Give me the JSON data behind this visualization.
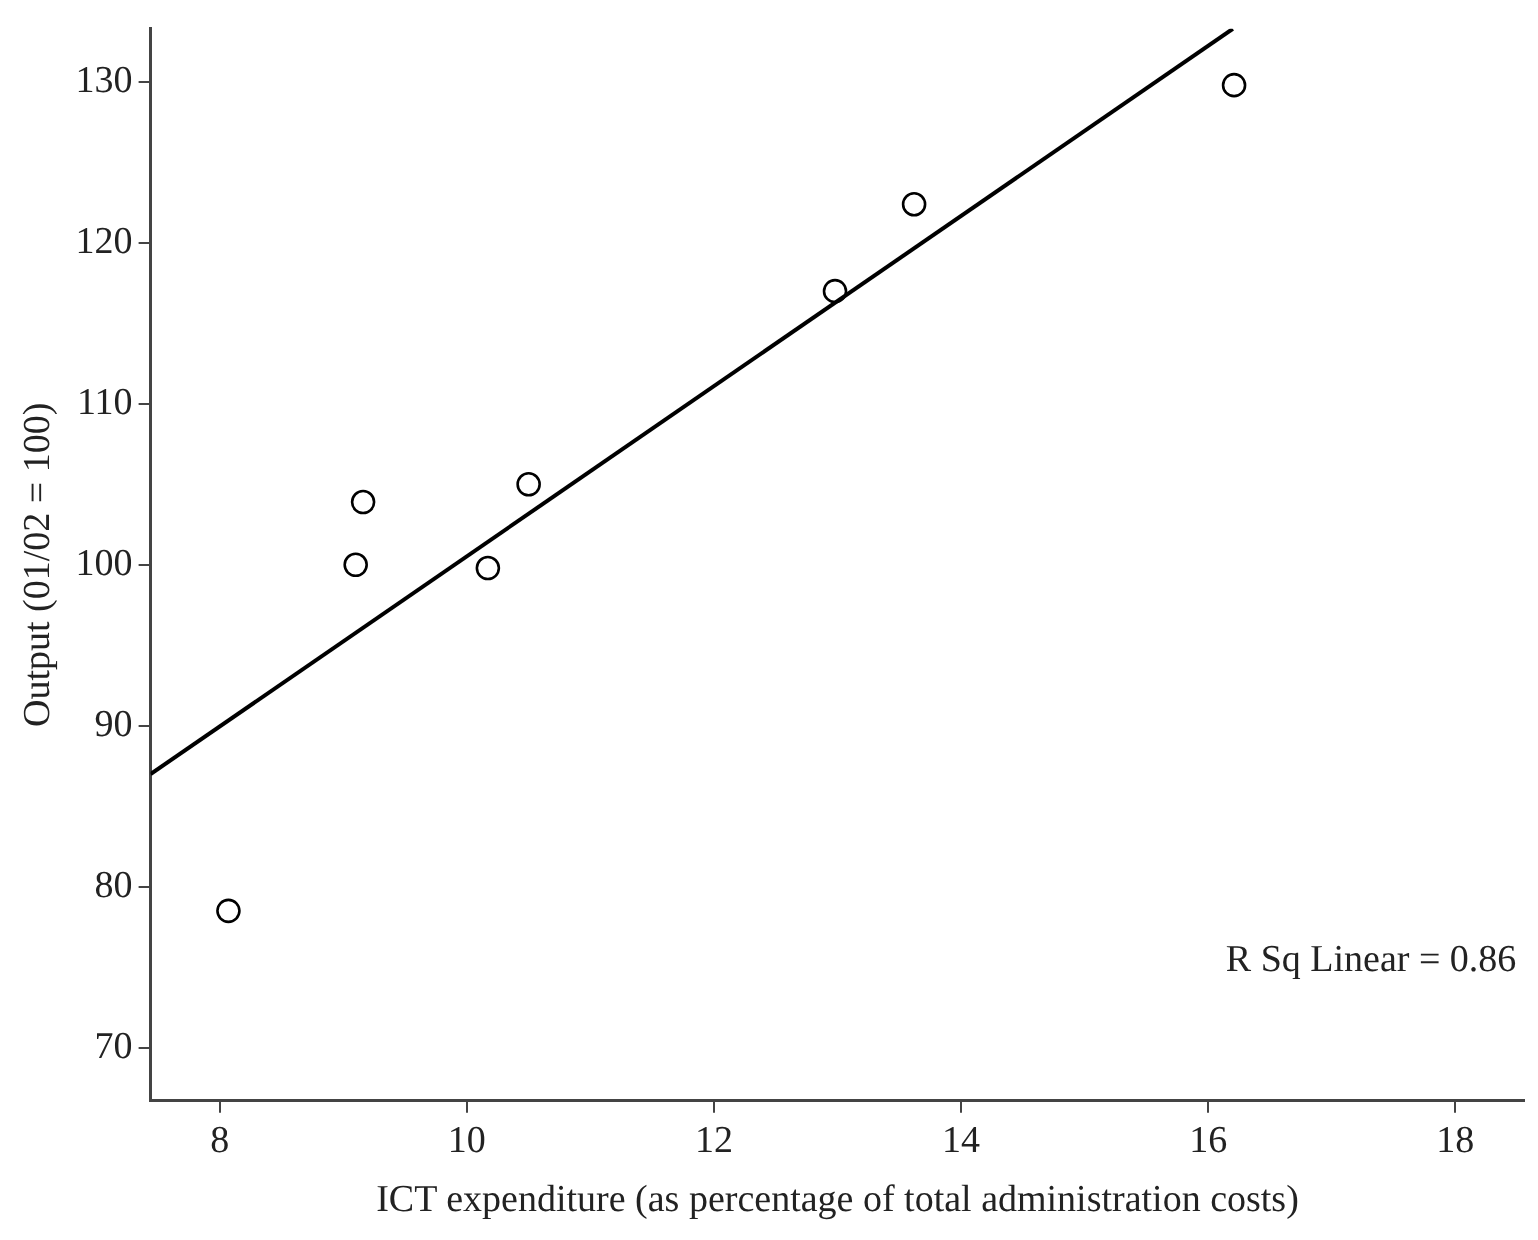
{
  "chart_data": {
    "type": "scatter",
    "xlabel": "ICT expenditure (as percentage of total administration costs)",
    "ylabel": "Output (01/02 = 100)",
    "annotations": [
      "R Sq Linear = 0.86"
    ],
    "xlim": [
      7.44,
      18.56
    ],
    "ylim": [
      66.7,
      133.3
    ],
    "xticks": [
      8,
      10,
      12,
      14,
      16,
      18
    ],
    "yticks": [
      70,
      80,
      90,
      100,
      110,
      120,
      130
    ],
    "marker": "circle",
    "series": [
      {
        "type": "scatter",
        "color": "#000000",
        "x": [
          8.07,
          9.1,
          9.16,
          10.17,
          10.5,
          12.98,
          13.62,
          16.21
        ],
        "values": [
          78.5,
          100.0,
          103.9,
          99.8,
          105.0,
          117.0,
          122.4,
          129.8
        ]
      },
      {
        "type": "line",
        "color": "#000000",
        "marker": "none",
        "x": [
          7.44,
          16.2
        ],
        "values": [
          87.0,
          133.3
        ]
      }
    ]
  }
}
